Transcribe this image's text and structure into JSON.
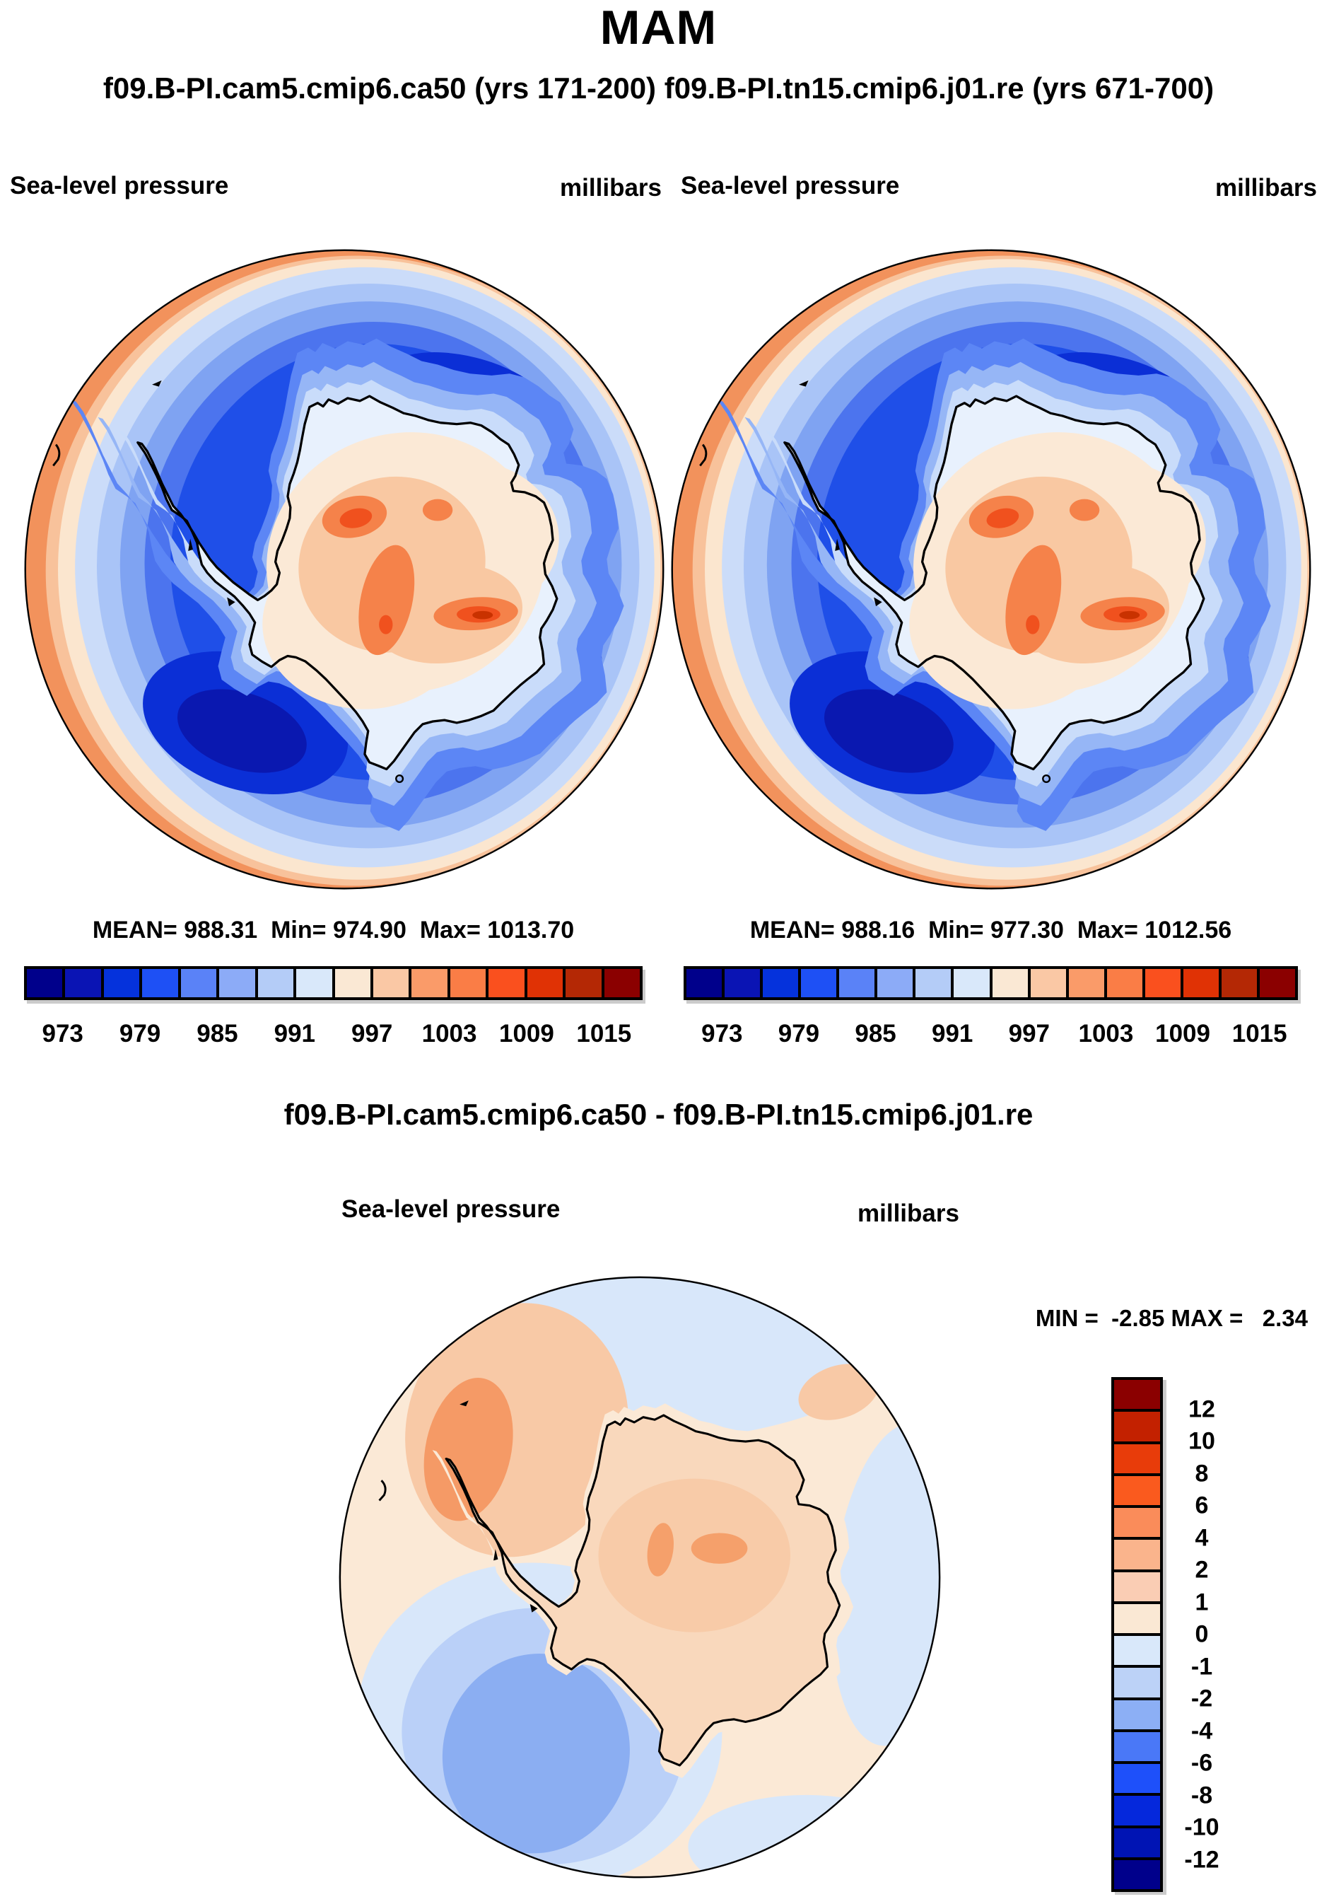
{
  "title": "MAM",
  "subtitle": "f09.B-PI.cam5.cmip6.ca50 (yrs 171-200) f09.B-PI.tn15.cmip6.j01.re (yrs 671-700)",
  "panels": {
    "left": {
      "run_name": "f09.B-PI.cam5.cmip6.ca50",
      "years": "yrs 171-200",
      "field": "Sea-level pressure",
      "units": "millibars",
      "stats": "MEAN= 988.31  Min= 974.90  Max= 1013.70"
    },
    "right": {
      "run_name": "f09.B-PI.tn15.cmip6.j01.re",
      "years": "yrs 671-700",
      "field": "Sea-level pressure",
      "units": "millibars",
      "stats": "MEAN= 988.16  Min= 977.30  Max= 1012.56"
    }
  },
  "pressure_colorbar": {
    "ticks": [
      "973",
      "979",
      "985",
      "991",
      "997",
      "1003",
      "1009",
      "1015"
    ],
    "palette": [
      "#00008B",
      "#0A14B4",
      "#0532DC",
      "#1E50F5",
      "#5A82F7",
      "#8CABF7",
      "#B4CCF7",
      "#D9E8FA",
      "#FAE8D4",
      "#FAC8A5",
      "#FA9B69",
      "#FA7D46",
      "#FA501E",
      "#E03205",
      "#B42805",
      "#8B0000"
    ]
  },
  "difference": {
    "title": "f09.B-PI.cam5.cmip6.ca50 - f09.B-PI.tn15.cmip6.j01.re",
    "field": "Sea-level pressure",
    "units": "millibars",
    "minmax": "MIN =  -2.85 MAX =   2.34",
    "colorbar": {
      "ticks": [
        "12",
        "10",
        "8",
        "6",
        "4",
        "2",
        "1",
        "0",
        "-1",
        "-2",
        "-4",
        "-6",
        "-8",
        "-10",
        "-12"
      ],
      "palette": [
        "#8B0000",
        "#C32100",
        "#E83C0A",
        "#FA5A1E",
        "#FA8C5A",
        "#FAB48C",
        "#FACDB4",
        "#FAE8D4",
        "#D9E8FA",
        "#BCD2F7",
        "#8CAFF5",
        "#4A78F7",
        "#1E50FA",
        "#0528DC",
        "#0014B4",
        "#00008B"
      ]
    }
  },
  "chart_data": [
    {
      "type": "heatmap",
      "subtype": "filled-contour south polar stereographic map",
      "title": "f09.B-PI.cam5.cmip6.ca50 (yrs 171-200)",
      "variable": "Sea-level pressure",
      "units": "millibars",
      "region": "Antarctica / Southern Ocean",
      "stats": {
        "mean": 988.31,
        "min": 974.9,
        "max": 1013.7
      },
      "contour_interval": 3,
      "contour_levels": [
        973,
        976,
        979,
        982,
        985,
        988,
        991,
        994,
        997,
        1000,
        1003,
        1006,
        1009,
        1012,
        1015
      ],
      "colorbar_ticks": [
        973,
        979,
        985,
        991,
        997,
        1003,
        1009,
        1015
      ],
      "palette": [
        "#00008B",
        "#0A14B4",
        "#0532DC",
        "#1E50F5",
        "#5A82F7",
        "#8CABF7",
        "#B4CCF7",
        "#D9E8FA",
        "#FAE8D4",
        "#FAC8A5",
        "#FA9B69",
        "#FA7D46",
        "#FA501E",
        "#E03205",
        "#B42805",
        "#8B0000"
      ],
      "legend_position": "bottom",
      "pattern_notes": "Dark-blue circumpolar low-pressure trough (974-985 mb) rings the continent, deepest southwest of the Ross Sea and northeast of the continent; pressure rises across the East Antarctic interior to 1003-1014 mb (orange/red core spots) and toward the subtropical map rim (997-1006 mb peach band, strongest on the left edge)."
    },
    {
      "type": "heatmap",
      "subtype": "filled-contour south polar stereographic map",
      "title": "f09.B-PI.tn15.cmip6.j01.re (yrs 671-700)",
      "variable": "Sea-level pressure",
      "units": "millibars",
      "region": "Antarctica / Southern Ocean",
      "stats": {
        "mean": 988.16,
        "min": 977.3,
        "max": 1012.56
      },
      "contour_interval": 3,
      "contour_levels": [
        973,
        976,
        979,
        982,
        985,
        988,
        991,
        994,
        997,
        1000,
        1003,
        1006,
        1009,
        1012,
        1015
      ],
      "colorbar_ticks": [
        973,
        979,
        985,
        991,
        997,
        1003,
        1009,
        1015
      ],
      "palette": [
        "#00008B",
        "#0A14B4",
        "#0532DC",
        "#1E50F5",
        "#5A82F7",
        "#8CABF7",
        "#B4CCF7",
        "#D9E8FA",
        "#FAE8D4",
        "#FAC8A5",
        "#FA9B69",
        "#FA7D46",
        "#FA501E",
        "#E03205",
        "#B42805",
        "#8B0000"
      ],
      "legend_position": "bottom",
      "pattern_notes": "Nearly identical pattern to the first run: circumpolar blue trough around the coast, orange high (1003-1013 mb) over the East Antarctic plateau, peach subtropical rim."
    },
    {
      "type": "heatmap",
      "subtype": "filled-contour south polar stereographic difference map",
      "title": "f09.B-PI.cam5.cmip6.ca50 - f09.B-PI.tn15.cmip6.j01.re",
      "variable": "Sea-level pressure difference",
      "units": "millibars",
      "stats": {
        "min": -2.85,
        "max": 2.34
      },
      "contour_levels": [
        -12,
        -10,
        -8,
        -6,
        -4,
        -2,
        -1,
        0,
        1,
        2,
        4,
        6,
        8,
        10,
        12
      ],
      "palette_top_to_bottom": [
        "#8B0000",
        "#C32100",
        "#E83C0A",
        "#FA5A1E",
        "#FA8C5A",
        "#FAB48C",
        "#FACDB4",
        "#FAE8D4",
        "#D9E8FA",
        "#BCD2F7",
        "#8CAFF5",
        "#4A78F7",
        "#1E50FA",
        "#0528DC",
        "#0014B4",
        "#00008B"
      ],
      "legend_position": "right",
      "pattern_notes": "Small differences (within about +2.3 / -2.9 mb): positive anomalies (orange, +1 to +2 mb) west of the Antarctic Peninsula / Bellingshausen sector and weakly over the East Antarctic interior; negative anomalies (blue, -1 to -3 mb) over the Ross Sea sector extending southwest, plus a weak negative band across the top of the map."
    }
  ]
}
